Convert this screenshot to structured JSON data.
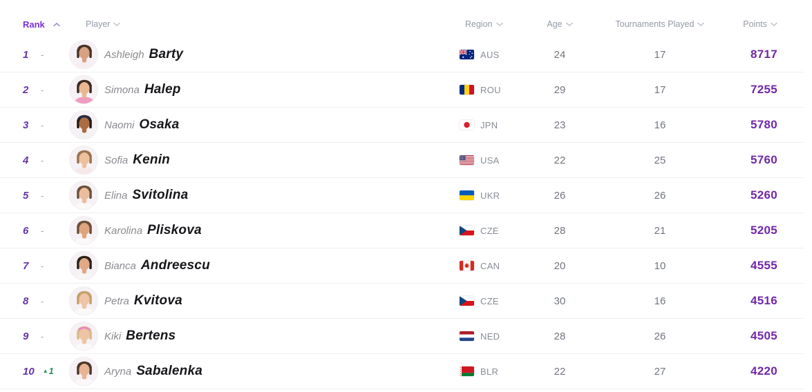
{
  "colors": {
    "accent_purple": "#7b2fd6",
    "rank_number_purple": "#6433ab",
    "points_purple": "#7127a8",
    "positive_green": "#1e9150",
    "header_gray": "#939aa6",
    "first_name_gray": "#8a8a90",
    "last_name_dark": "#16161a",
    "value_gray": "#70757e",
    "country_code_gray": "#878d96",
    "separator": "#efeff2",
    "row_bg": "#ffffff"
  },
  "icons": {
    "rank_up_glyph": "▲",
    "sort_ascending": "chevron-up",
    "sort_default": "chevron-down"
  },
  "table": {
    "columns": [
      {
        "key": "rank",
        "label": "Rank",
        "sort": "asc"
      },
      {
        "key": "player",
        "label": "Player",
        "sort": "none"
      },
      {
        "key": "region",
        "label": "Region",
        "sort": "none"
      },
      {
        "key": "age",
        "label": "Age",
        "sort": "none"
      },
      {
        "key": "tournaments",
        "label": "Tournaments Played",
        "sort": "none"
      },
      {
        "key": "points",
        "label": "Points",
        "sort": "none"
      }
    ]
  },
  "players": [
    {
      "rank": "1",
      "change": {
        "label": "-",
        "direction": "none"
      },
      "first_name": "Ashleigh",
      "last_name": "Barty",
      "country_code": "AUS",
      "age": "24",
      "tournaments_played": "17",
      "points": "8717",
      "avatar": {
        "hair": "#473327",
        "skin": "#d7a183",
        "shirt": "#f7eef2",
        "accessory": null
      }
    },
    {
      "rank": "2",
      "change": {
        "label": "-",
        "direction": "none"
      },
      "first_name": "Simona",
      "last_name": "Halep",
      "country_code": "ROU",
      "age": "29",
      "tournaments_played": "17",
      "points": "7255",
      "avatar": {
        "hair": "#3c2b22",
        "skin": "#eab793",
        "shirt": "#ef9cc1",
        "accessory": null
      }
    },
    {
      "rank": "3",
      "change": {
        "label": "-",
        "direction": "none"
      },
      "first_name": "Naomi",
      "last_name": "Osaka",
      "country_code": "JPN",
      "age": "23",
      "tournaments_played": "16",
      "points": "5780",
      "avatar": {
        "hair": "#221a16",
        "skin": "#ab6c42",
        "shirt": "#f4f1f2",
        "accessory": "#232c4e"
      }
    },
    {
      "rank": "4",
      "change": {
        "label": "-",
        "direction": "none"
      },
      "first_name": "Sofia",
      "last_name": "Kenin",
      "country_code": "USA",
      "age": "22",
      "tournaments_played": "25",
      "points": "5760",
      "avatar": {
        "hair": "#9a7350",
        "skin": "#eec09e",
        "shirt": "#f6e9ea",
        "accessory": null
      }
    },
    {
      "rank": "5",
      "change": {
        "label": "-",
        "direction": "none"
      },
      "first_name": "Elina",
      "last_name": "Svitolina",
      "country_code": "UKR",
      "age": "26",
      "tournaments_played": "26",
      "points": "5260",
      "avatar": {
        "hair": "#6d503a",
        "skin": "#eabd9c",
        "shirt": "#fbf8f8",
        "accessory": null
      }
    },
    {
      "rank": "6",
      "change": {
        "label": "-",
        "direction": "none"
      },
      "first_name": "Karolina",
      "last_name": "Pliskova",
      "country_code": "CZE",
      "age": "28",
      "tournaments_played": "21",
      "points": "5205",
      "avatar": {
        "hair": "#6b4f37",
        "skin": "#dda57f",
        "shirt": "#fbf9f9",
        "accessory": null
      }
    },
    {
      "rank": "7",
      "change": {
        "label": "-",
        "direction": "none"
      },
      "first_name": "Bianca",
      "last_name": "Andreescu",
      "country_code": "CAN",
      "age": "20",
      "tournaments_played": "10",
      "points": "4555",
      "avatar": {
        "hair": "#2e211a",
        "skin": "#e0a987",
        "shirt": "#f8f5f5",
        "accessory": null
      }
    },
    {
      "rank": "8",
      "change": {
        "label": "-",
        "direction": "none"
      },
      "first_name": "Petra",
      "last_name": "Kvitova",
      "country_code": "CZE",
      "age": "30",
      "tournaments_played": "16",
      "points": "4516",
      "avatar": {
        "hair": "#c3a06c",
        "skin": "#efc5a5",
        "shirt": "#fbfafa",
        "accessory": null
      }
    },
    {
      "rank": "9",
      "change": {
        "label": "-",
        "direction": "none"
      },
      "first_name": "Kiki",
      "last_name": "Bertens",
      "country_code": "NED",
      "age": "28",
      "tournaments_played": "26",
      "points": "4505",
      "avatar": {
        "hair": "#d9bb8a",
        "skin": "#eec4a4",
        "shirt": "#fbfafa",
        "accessory": "#ec86c4"
      }
    },
    {
      "rank": "10",
      "change": {
        "label": "1",
        "direction": "up"
      },
      "first_name": "Aryna",
      "last_name": "Sabalenka",
      "country_code": "BLR",
      "age": "22",
      "tournaments_played": "27",
      "points": "4220",
      "avatar": {
        "hair": "#4d382a",
        "skin": "#e7b494",
        "shirt": "#fbf9f9",
        "accessory": null
      }
    }
  ]
}
